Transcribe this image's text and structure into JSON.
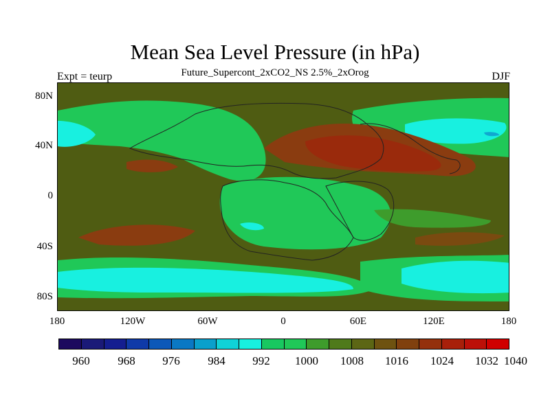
{
  "title": "Mean Sea Level Pressure (in hPa)",
  "subtitle": "Future_Supercont_2xCO2_NS 2.5%_2xOrog",
  "left_label": "Expt = teurp",
  "right_label": "DJF",
  "map": {
    "lat_ticks": [
      "80N",
      "40N",
      "0",
      "40S",
      "80S"
    ],
    "lon_ticks": [
      "180",
      "120W",
      "60W",
      "0",
      "60E",
      "120E",
      "180"
    ]
  },
  "colorbar": {
    "labels": [
      "960",
      "968",
      "976",
      "984",
      "992",
      "1000",
      "1008",
      "1016",
      "1024",
      "1032",
      "1040"
    ],
    "colors": [
      "#1c0a5e",
      "#1a1a78",
      "#141e90",
      "#0f3aa8",
      "#0c58b8",
      "#0a78c4",
      "#0aa0cc",
      "#10d2d8",
      "#18f0e0",
      "#18c860",
      "#20c858",
      "#3e9c2c",
      "#4f7a1a",
      "#5c6614",
      "#6e5210",
      "#80400e",
      "#94300c",
      "#a8200a",
      "#bc1008",
      "#d00000"
    ]
  }
}
